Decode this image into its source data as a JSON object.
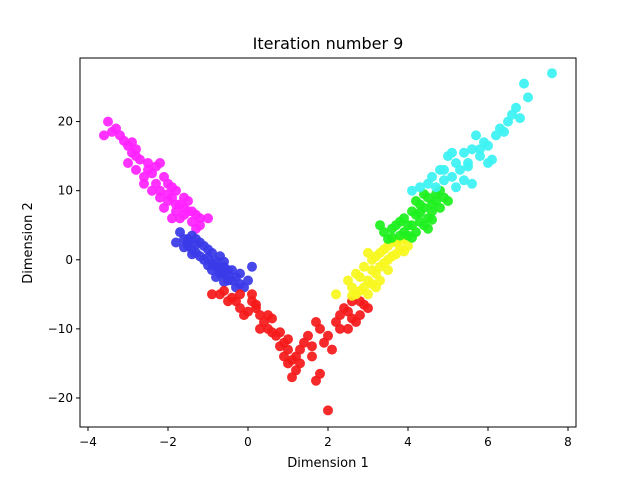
{
  "chart_data": {
    "type": "scatter",
    "title": "Iteration number 9",
    "xlabel": "Dimension 1",
    "ylabel": "Dimension 2",
    "xlim": [
      -4.2,
      8.2
    ],
    "ylim": [
      -24.2,
      29.2
    ],
    "x_ticks": [
      -4,
      -2,
      0,
      2,
      4,
      6,
      8
    ],
    "y_ticks": [
      -20,
      -10,
      0,
      10,
      20
    ],
    "x_tick_labels": [
      "−4",
      "−2",
      "0",
      "2",
      "4",
      "6",
      "8"
    ],
    "y_tick_labels": [
      "−20",
      "−10",
      "0",
      "10",
      "20"
    ],
    "grid": false,
    "legend": "none",
    "series": [
      {
        "color": "#ff22ff",
        "points": [
          [
            -3.5,
            20
          ],
          [
            -3.6,
            18
          ],
          [
            -3.4,
            18.5
          ],
          [
            -3.2,
            18
          ],
          [
            -3.1,
            17.2
          ],
          [
            -3.0,
            16.5
          ],
          [
            -2.9,
            17
          ],
          [
            -2.8,
            15
          ],
          [
            -3.0,
            14
          ],
          [
            -2.8,
            13
          ],
          [
            -2.7,
            14.5
          ],
          [
            -2.6,
            12
          ],
          [
            -2.5,
            13
          ],
          [
            -2.4,
            12.5
          ],
          [
            -2.3,
            11
          ],
          [
            -2.2,
            10
          ],
          [
            -2.3,
            13.5
          ],
          [
            -2.2,
            14
          ],
          [
            -2.1,
            12
          ],
          [
            -2.0,
            11
          ],
          [
            -1.9,
            9
          ],
          [
            -1.8,
            10
          ],
          [
            -1.7,
            8
          ],
          [
            -1.6,
            9
          ],
          [
            -1.5,
            8.5
          ],
          [
            -1.4,
            7
          ],
          [
            -1.3,
            6.5
          ],
          [
            -1.6,
            6.5
          ],
          [
            -1.8,
            8
          ],
          [
            -1.9,
            6
          ],
          [
            -2.0,
            8.5
          ],
          [
            -2.1,
            7.5
          ],
          [
            -1.7,
            6
          ],
          [
            -1.5,
            7
          ],
          [
            -1.2,
            6
          ],
          [
            -1.9,
            10.5
          ],
          [
            -2.4,
            10
          ],
          [
            -2.6,
            11
          ],
          [
            -1.2,
            5
          ],
          [
            -1.0,
            6
          ],
          [
            -2.2,
            9
          ],
          [
            -1.8,
            7
          ],
          [
            -1.4,
            5.5
          ],
          [
            -2.8,
            16
          ],
          [
            -2.5,
            14
          ],
          [
            -2.0,
            9.5
          ],
          [
            -1.6,
            7.5
          ],
          [
            -1.3,
            4.5
          ],
          [
            -3.3,
            19
          ],
          [
            -2.9,
            15.5
          ]
        ]
      },
      {
        "color": "#3a3ae8",
        "points": [
          [
            -1.7,
            4
          ],
          [
            -1.6,
            3
          ],
          [
            -1.5,
            2
          ],
          [
            -1.4,
            3.5
          ],
          [
            -1.3,
            1
          ],
          [
            -1.2,
            2.5
          ],
          [
            -1.1,
            0
          ],
          [
            -1.0,
            1.5
          ],
          [
            -0.9,
            -0.5
          ],
          [
            -0.8,
            -1
          ],
          [
            -0.7,
            0.5
          ],
          [
            -0.6,
            -2
          ],
          [
            -0.5,
            -1.5
          ],
          [
            -0.4,
            -3
          ],
          [
            -0.3,
            -2.5
          ],
          [
            -0.2,
            -3.5
          ],
          [
            -0.1,
            -4
          ],
          [
            0.0,
            -3
          ],
          [
            0.1,
            -1
          ],
          [
            -1.5,
            3
          ],
          [
            -1.4,
            1.5
          ],
          [
            -1.2,
            0.5
          ],
          [
            -1.1,
            2
          ],
          [
            -0.9,
            1
          ],
          [
            -0.8,
            -0.2
          ],
          [
            -0.6,
            -1
          ],
          [
            -0.5,
            -3
          ],
          [
            -0.7,
            -2
          ],
          [
            -0.4,
            -1.5
          ],
          [
            -0.3,
            -4
          ],
          [
            -1.6,
            1.8
          ],
          [
            -1.3,
            3
          ],
          [
            -1.0,
            -0.8
          ],
          [
            -0.8,
            -2.5
          ],
          [
            -0.2,
            -2
          ],
          [
            -0.6,
            -0.3
          ],
          [
            -1.5,
            2.5
          ],
          [
            -1.3,
            2.2
          ],
          [
            -1.0,
            0.3
          ],
          [
            -0.9,
            -1.5
          ],
          [
            -0.7,
            -1.2
          ],
          [
            -0.5,
            -2.2
          ],
          [
            -1.8,
            2.5
          ],
          [
            -1.4,
            0.8
          ],
          [
            -0.6,
            -3.2
          ]
        ]
      },
      {
        "color": "#f51a1a",
        "points": [
          [
            -0.9,
            -5
          ],
          [
            -0.7,
            -5
          ],
          [
            -0.6,
            -4.5
          ],
          [
            -0.4,
            -5.5
          ],
          [
            -0.3,
            -6
          ],
          [
            -0.2,
            -7
          ],
          [
            -0.1,
            -8
          ],
          [
            0.0,
            -7.5
          ],
          [
            0.1,
            -6
          ],
          [
            0.2,
            -6.5
          ],
          [
            0.3,
            -8
          ],
          [
            0.4,
            -9
          ],
          [
            0.5,
            -10
          ],
          [
            0.6,
            -8.5
          ],
          [
            0.7,
            -11
          ],
          [
            0.8,
            -10.5
          ],
          [
            0.9,
            -12
          ],
          [
            0.9,
            -14
          ],
          [
            1.0,
            -15
          ],
          [
            1.1,
            -17
          ],
          [
            1.0,
            -13
          ],
          [
            1.2,
            -14
          ],
          [
            1.2,
            -16
          ],
          [
            1.3,
            -13
          ],
          [
            1.4,
            -12
          ],
          [
            1.5,
            -11
          ],
          [
            1.6,
            -14
          ],
          [
            1.7,
            -17.5
          ],
          [
            1.8,
            -16.5
          ],
          [
            1.6,
            -12.5
          ],
          [
            1.7,
            -9
          ],
          [
            1.8,
            -10
          ],
          [
            1.9,
            -12
          ],
          [
            2.0,
            -11
          ],
          [
            2.1,
            -13
          ],
          [
            2.2,
            -9
          ],
          [
            2.3,
            -8
          ],
          [
            2.4,
            -7
          ],
          [
            2.5,
            -7.5
          ],
          [
            2.6,
            -6
          ],
          [
            2.7,
            -9
          ],
          [
            2.8,
            -8
          ],
          [
            2.9,
            -6.5
          ],
          [
            3.0,
            -7
          ],
          [
            2.5,
            -10
          ],
          [
            2.3,
            -10
          ],
          [
            2.0,
            -21.8
          ],
          [
            1.1,
            -14.5
          ],
          [
            0.8,
            -12.5
          ],
          [
            0.3,
            -10
          ],
          [
            0.2,
            -7
          ],
          [
            0.6,
            -10.5
          ],
          [
            1.3,
            -15
          ],
          [
            1.0,
            -11.5
          ],
          [
            0.5,
            -8
          ],
          [
            2.6,
            -8.5
          ],
          [
            2.8,
            -6
          ],
          [
            0.1,
            -5
          ],
          [
            -0.2,
            -5
          ],
          [
            -0.5,
            -6
          ]
        ]
      },
      {
        "color": "#f7f71e",
        "points": [
          [
            2.2,
            -5
          ],
          [
            2.5,
            -3
          ],
          [
            2.6,
            -4
          ],
          [
            2.7,
            -2
          ],
          [
            2.8,
            -4.5
          ],
          [
            2.9,
            -1
          ],
          [
            3.0,
            -3
          ],
          [
            3.1,
            0
          ],
          [
            3.2,
            -2
          ],
          [
            3.3,
            1
          ],
          [
            3.4,
            -0.5
          ],
          [
            3.5,
            2
          ],
          [
            3.6,
            0.5
          ],
          [
            3.7,
            2.5
          ],
          [
            3.8,
            1.5
          ],
          [
            3.9,
            3
          ],
          [
            4.0,
            2
          ],
          [
            3.2,
            -4
          ],
          [
            3.1,
            -3.5
          ],
          [
            2.9,
            -4
          ],
          [
            3.3,
            -1
          ],
          [
            3.5,
            0
          ],
          [
            3.6,
            2.8
          ],
          [
            3.0,
            1
          ],
          [
            3.4,
            1.5
          ],
          [
            2.8,
            -2.5
          ],
          [
            3.7,
            0.8
          ],
          [
            3.0,
            -5
          ],
          [
            2.7,
            -5
          ],
          [
            3.8,
            2.8
          ],
          [
            3.3,
            -3
          ],
          [
            3.5,
            -1.5
          ],
          [
            3.2,
            0.5
          ],
          [
            3.1,
            -1.5
          ],
          [
            2.6,
            -5.2
          ],
          [
            3.9,
            1.2
          ]
        ]
      },
      {
        "color": "#1ef01e",
        "points": [
          [
            3.3,
            5
          ],
          [
            3.4,
            4
          ],
          [
            3.5,
            3
          ],
          [
            3.6,
            4.5
          ],
          [
            3.7,
            5
          ],
          [
            3.8,
            3.5
          ],
          [
            3.9,
            6
          ],
          [
            4.0,
            5
          ],
          [
            4.1,
            7
          ],
          [
            4.2,
            6.5
          ],
          [
            4.3,
            8
          ],
          [
            4.4,
            7.5
          ],
          [
            4.5,
            9
          ],
          [
            4.6,
            8
          ],
          [
            4.7,
            9.5
          ],
          [
            4.8,
            10
          ],
          [
            4.9,
            9
          ],
          [
            5.0,
            8.5
          ],
          [
            4.4,
            5
          ],
          [
            4.2,
            4
          ],
          [
            4.0,
            3.5
          ],
          [
            4.5,
            6
          ],
          [
            4.6,
            7
          ],
          [
            4.3,
            5.5
          ],
          [
            3.9,
            4
          ],
          [
            4.1,
            5
          ],
          [
            4.7,
            8.5
          ],
          [
            4.2,
            8.5
          ],
          [
            3.8,
            5.5
          ],
          [
            4.5,
            4.5
          ],
          [
            4.8,
            7.5
          ],
          [
            4.4,
            9.5
          ],
          [
            4.1,
            3.2
          ],
          [
            4.6,
            5.8
          ],
          [
            3.6,
            3.2
          ],
          [
            4.3,
            6.8
          ]
        ]
      },
      {
        "color": "#3cf2f2",
        "points": [
          [
            4.1,
            10
          ],
          [
            4.3,
            10.5
          ],
          [
            4.5,
            11
          ],
          [
            4.6,
            12
          ],
          [
            4.7,
            10.5
          ],
          [
            4.8,
            13
          ],
          [
            4.9,
            11.5
          ],
          [
            5.0,
            15
          ],
          [
            5.1,
            12
          ],
          [
            5.2,
            14
          ],
          [
            5.3,
            13
          ],
          [
            5.4,
            15.5
          ],
          [
            5.5,
            14
          ],
          [
            5.6,
            16
          ],
          [
            5.7,
            18
          ],
          [
            5.8,
            15
          ],
          [
            5.9,
            17
          ],
          [
            6.0,
            16.5
          ],
          [
            6.1,
            14.5
          ],
          [
            6.2,
            18
          ],
          [
            6.3,
            19
          ],
          [
            6.4,
            18.5
          ],
          [
            6.5,
            20
          ],
          [
            6.6,
            21
          ],
          [
            6.7,
            22
          ],
          [
            6.8,
            20.5
          ],
          [
            6.9,
            25.5
          ],
          [
            7.0,
            23.5
          ],
          [
            7.6,
            27
          ],
          [
            5.6,
            11
          ],
          [
            5.5,
            13.5
          ],
          [
            5.2,
            10.5
          ],
          [
            4.9,
            13
          ],
          [
            5.8,
            16
          ],
          [
            5.1,
            15.5
          ],
          [
            5.4,
            11.5
          ],
          [
            6.0,
            14
          ]
        ]
      }
    ]
  }
}
